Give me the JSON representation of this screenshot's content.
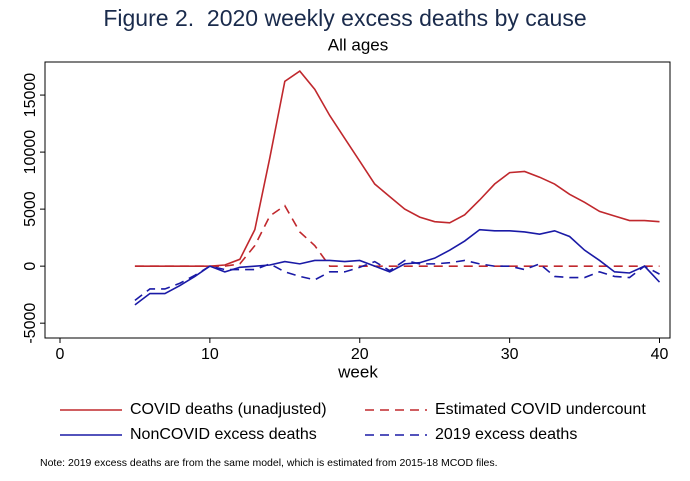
{
  "chart_data": {
    "type": "line",
    "title": "Figure 2.  2020 weekly excess deaths by cause",
    "subtitle": "All ages",
    "x_label": "week",
    "note": "Note: 2019 excess deaths are from the same model, which is estimated from 2015-18 MCOD files.",
    "x": [
      5,
      6,
      7,
      8,
      9,
      10,
      11,
      12,
      13,
      14,
      15,
      16,
      17,
      18,
      19,
      20,
      21,
      22,
      23,
      24,
      25,
      26,
      27,
      28,
      29,
      30,
      31,
      32,
      33,
      34,
      35,
      36,
      37,
      38,
      39,
      40
    ],
    "series": [
      {
        "name": "COVID deaths (unadjusted)",
        "color": "#c0282d",
        "dashed": false,
        "values": [
          0,
          0,
          0,
          0,
          0,
          0,
          100,
          600,
          3200,
          9500,
          16200,
          17100,
          15500,
          13200,
          11200,
          9200,
          7200,
          6100,
          5000,
          4300,
          3900,
          3800,
          4500,
          5800,
          7200,
          8200,
          8300,
          7800,
          7200,
          6300,
          5600,
          4800,
          4400,
          4000,
          4000,
          3900
        ]
      },
      {
        "name": "Estimated COVID undercount",
        "color": "#c0282d",
        "dashed": true,
        "values": [
          0,
          0,
          0,
          0,
          0,
          0,
          0,
          200,
          1800,
          4400,
          5300,
          3000,
          1800,
          0,
          0,
          0,
          0,
          0,
          0,
          0,
          0,
          0,
          0,
          0,
          0,
          0,
          0,
          0,
          0,
          0,
          0,
          0,
          0,
          0,
          0,
          0
        ]
      },
      {
        "name": "NonCOVID excess deaths",
        "color": "#1a1aa6",
        "dashed": false,
        "values": [
          -3400,
          -2400,
          -2400,
          -1700,
          -900,
          0,
          -500,
          -100,
          0,
          100,
          400,
          200,
          500,
          500,
          400,
          500,
          0,
          -500,
          200,
          300,
          700,
          1400,
          2200,
          3200,
          3100,
          3100,
          3000,
          2800,
          3100,
          2600,
          1400,
          500,
          -500,
          -600,
          0,
          -1400
        ]
      },
      {
        "name": "2019 excess deaths",
        "color": "#1a1aa6",
        "dashed": true,
        "values": [
          -3000,
          -2000,
          -2000,
          -1500,
          -800,
          0,
          -300,
          -300,
          -300,
          200,
          -500,
          -900,
          -1200,
          -500,
          -500,
          -100,
          400,
          -400,
          500,
          200,
          200,
          300,
          500,
          200,
          0,
          0,
          -300,
          200,
          -900,
          -1000,
          -1000,
          -500,
          -900,
          -1000,
          0,
          -700
        ]
      }
    ],
    "xlim": [
      -1,
      40.7
    ],
    "xticks": [
      0,
      10,
      20,
      30,
      40
    ],
    "ylim": [
      -6300,
      17900
    ],
    "yticks": [
      -5000,
      0,
      5000,
      10000,
      15000
    ],
    "grid": false
  }
}
